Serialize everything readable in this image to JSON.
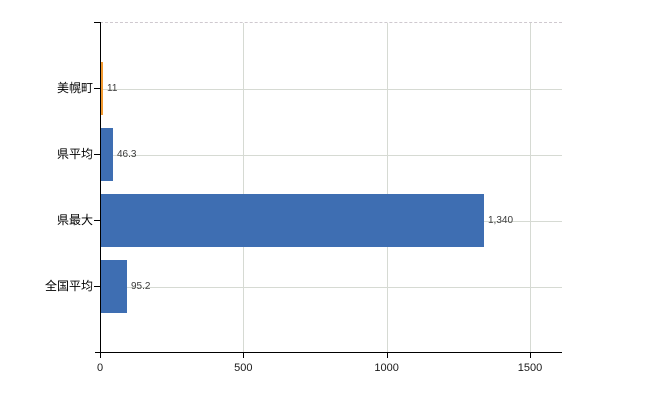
{
  "chart_data": {
    "type": "bar",
    "orientation": "horizontal",
    "title": "",
    "xlabel": "",
    "ylabel": "",
    "categories": [
      "美幌町",
      "県平均",
      "県最大",
      "全国平均"
    ],
    "values": [
      11,
      46.3,
      1340,
      95.2
    ],
    "value_labels": [
      "11",
      "46.3",
      "1,340",
      "95.2"
    ],
    "bar_colors": [
      "#f29a31",
      "#3e6eb2",
      "#3e6eb2",
      "#3e6eb2"
    ],
    "x_ticks": [
      0,
      500,
      1000,
      1500
    ],
    "x_tick_labels": [
      "0",
      "500",
      "1000",
      "1500"
    ],
    "xlim": [
      0,
      1612
    ],
    "grid": true,
    "legend": "none",
    "colors": {
      "highlight_bar": "#f29a31",
      "default_bar": "#3e6eb2",
      "gridline": "#d6dad3",
      "axis": "#000000",
      "value_text": "#3c3c3c",
      "tick_text": "#1a1a1a",
      "background": "#ffffff"
    }
  }
}
